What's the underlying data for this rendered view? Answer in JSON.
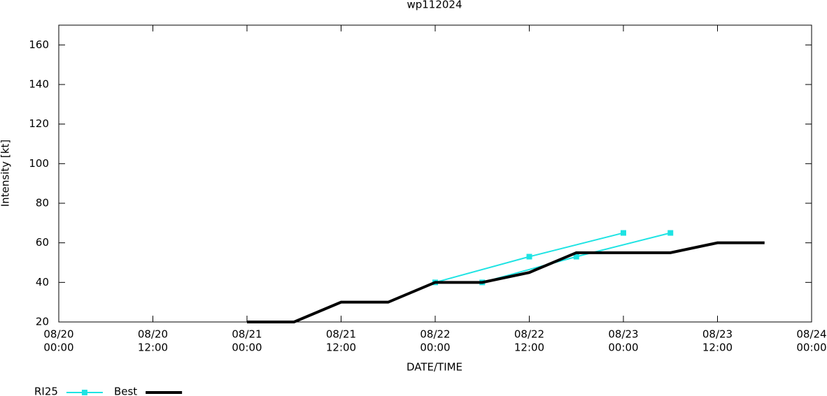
{
  "chart_data": {
    "type": "line",
    "title": "wp112024",
    "xlabel": "DATE/TIME",
    "ylabel": "Intensity [kt]",
    "xlim": [
      "08/20 00:00",
      "08/24 00:00"
    ],
    "xticks": [
      {
        "value": "08/20 00:00",
        "label": [
          "08/20",
          "00:00"
        ]
      },
      {
        "value": "08/20 12:00",
        "label": [
          "08/20",
          "12:00"
        ]
      },
      {
        "value": "08/21 00:00",
        "label": [
          "08/21",
          "00:00"
        ]
      },
      {
        "value": "08/21 12:00",
        "label": [
          "08/21",
          "12:00"
        ]
      },
      {
        "value": "08/22 00:00",
        "label": [
          "08/22",
          "00:00"
        ]
      },
      {
        "value": "08/22 12:00",
        "label": [
          "08/22",
          "12:00"
        ]
      },
      {
        "value": "08/23 00:00",
        "label": [
          "08/23",
          "00:00"
        ]
      },
      {
        "value": "08/23 12:00",
        "label": [
          "08/23",
          "12:00"
        ]
      },
      {
        "value": "08/24 00:00",
        "label": [
          "08/24",
          "00:00"
        ]
      }
    ],
    "ylim": [
      20,
      170
    ],
    "yticks": [
      20,
      40,
      60,
      80,
      100,
      120,
      140,
      160
    ],
    "series": [
      {
        "name": "RI25",
        "color": "#1ee3e3",
        "marker": "square",
        "x": [
          "08/22 00:00",
          "08/22 12:00",
          "08/23 00:00",
          null,
          "08/22 06:00",
          "08/22 18:00",
          "08/23 06:00"
        ],
        "values": [
          40,
          53,
          65,
          null,
          40,
          53,
          65
        ]
      },
      {
        "name": "Best",
        "color": "#000000",
        "x": [
          "08/21 00:00",
          "08/21 06:00",
          "08/21 12:00",
          "08/21 18:00",
          "08/22 00:00",
          "08/22 06:00",
          "08/22 12:00",
          "08/22 18:00",
          "08/23 00:00",
          "08/23 06:00",
          "08/23 12:00",
          "08/23 18:00"
        ],
        "values": [
          20,
          20,
          30,
          30,
          40,
          40,
          45,
          55,
          55,
          55,
          60,
          60
        ]
      }
    ]
  }
}
